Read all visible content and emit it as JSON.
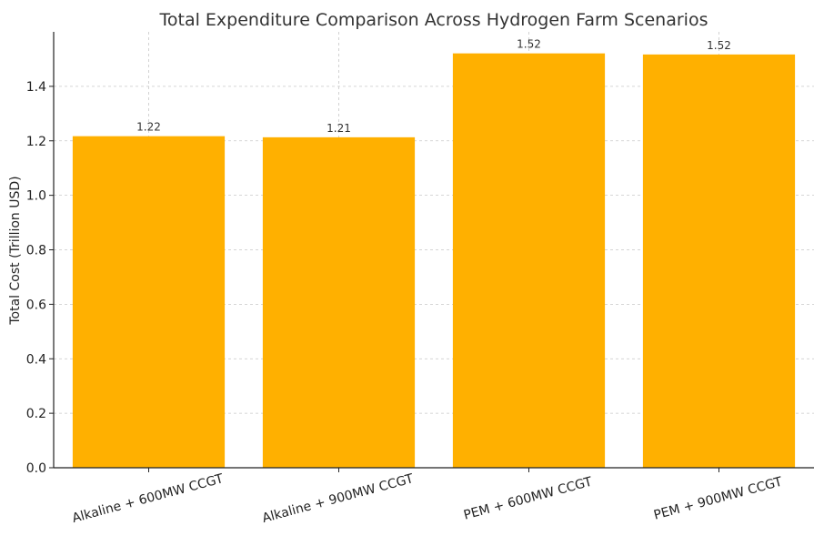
{
  "chart_data": {
    "type": "bar",
    "title": "Total Expenditure Comparison Across Hydrogen Farm Scenarios",
    "xlabel": "",
    "ylabel": "Total Cost (Trillion USD)",
    "categories": [
      "Alkaline + 600MW CCGT",
      "Alkaline + 900MW CCGT",
      "PEM + 600MW CCGT",
      "PEM + 900MW CCGT"
    ],
    "values": [
      1.217,
      1.213,
      1.521,
      1.517
    ],
    "data_labels": [
      "1.22",
      "1.21",
      "1.52",
      "1.52"
    ],
    "ylim": [
      0,
      1.6
    ],
    "yticks": [
      0.0,
      0.2,
      0.4,
      0.6,
      0.8,
      1.0,
      1.2,
      1.4
    ],
    "ytick_labels": [
      "0.0",
      "0.2",
      "0.4",
      "0.6",
      "0.8",
      "1.0",
      "1.2",
      "1.4"
    ],
    "grid": true,
    "bar_color": "#FFB000"
  }
}
